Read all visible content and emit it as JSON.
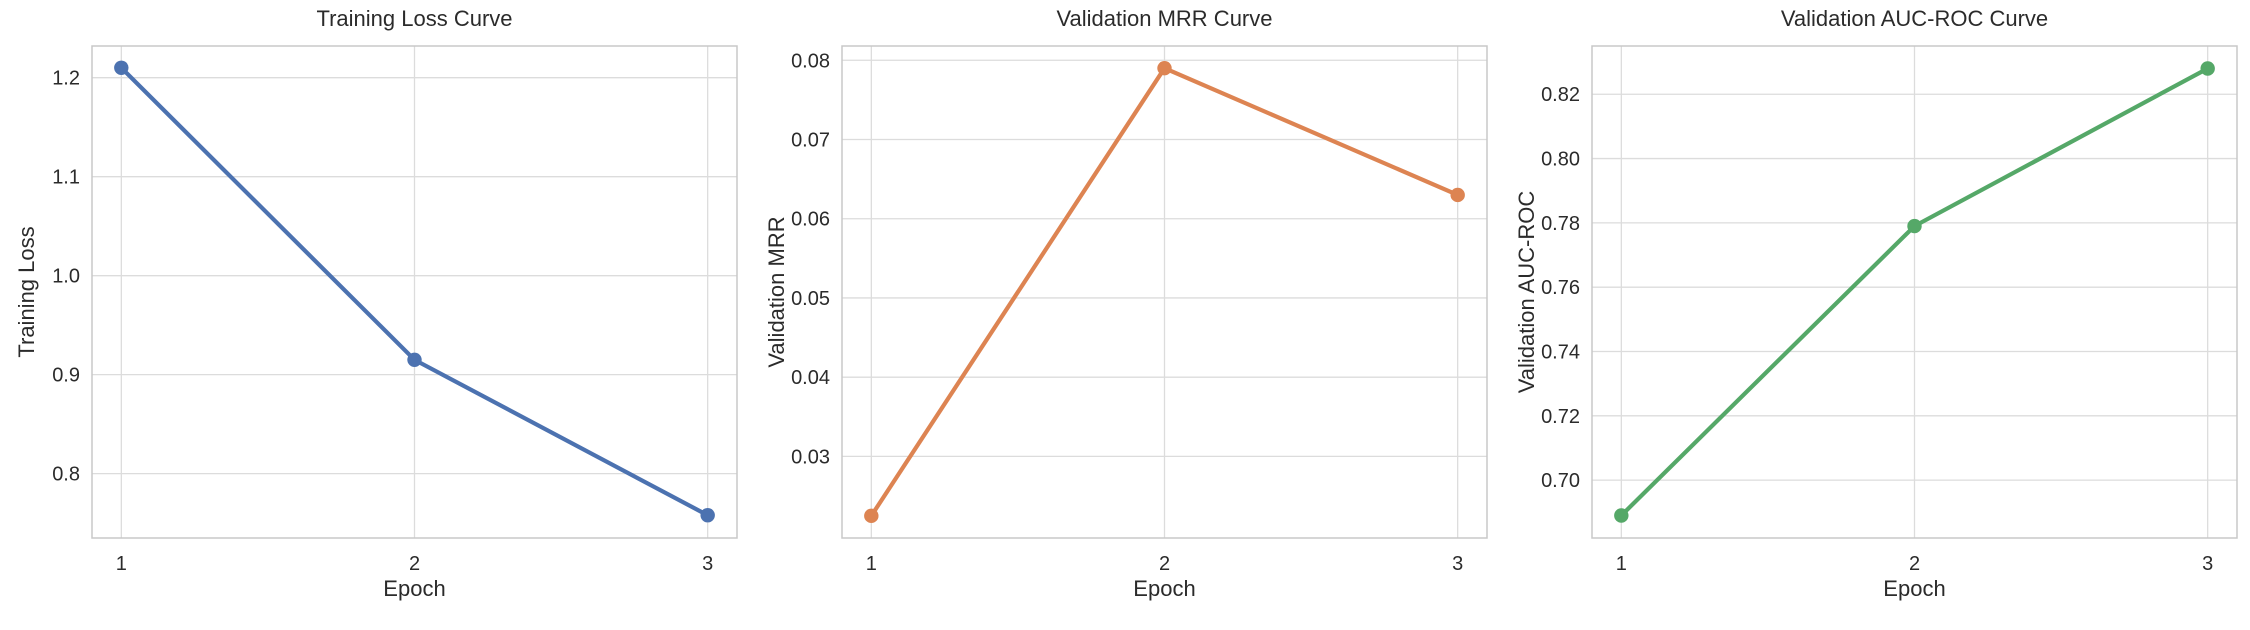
{
  "figure": {
    "background": "#ffffff",
    "grid_color": "#dcdcdc",
    "spine_color": "#c8c8c8",
    "text_color": "#2b2b2b"
  },
  "chart_data": [
    {
      "type": "line",
      "title": "Training Loss Curve",
      "xlabel": "Epoch",
      "ylabel": "Training Loss",
      "x": [
        1,
        2,
        3
      ],
      "values": [
        1.21,
        0.915,
        0.758
      ],
      "color": "#4c72b0",
      "marker": "o",
      "grid": true,
      "legend": "none",
      "xlim": [
        0.9,
        3.1
      ],
      "ylim": [
        0.735,
        1.232
      ],
      "xticks": [
        1,
        2,
        3
      ],
      "xtick_labels": [
        "1",
        "2",
        "3"
      ],
      "yticks": [
        0.8,
        0.9,
        1.0,
        1.1,
        1.2
      ],
      "ytick_labels": [
        "0.8",
        "0.9",
        "1.0",
        "1.1",
        "1.2"
      ]
    },
    {
      "type": "line",
      "title": "Validation MRR Curve",
      "xlabel": "Epoch",
      "ylabel": "Validation MRR",
      "x": [
        1,
        2,
        3
      ],
      "values": [
        0.0225,
        0.079,
        0.063
      ],
      "color": "#dd8452",
      "marker": "o",
      "grid": true,
      "legend": "none",
      "xlim": [
        0.9,
        3.1
      ],
      "ylim": [
        0.0197,
        0.0818
      ],
      "xticks": [
        1,
        2,
        3
      ],
      "xtick_labels": [
        "1",
        "2",
        "3"
      ],
      "yticks": [
        0.03,
        0.04,
        0.05,
        0.06,
        0.07,
        0.08
      ],
      "ytick_labels": [
        "0.03",
        "0.04",
        "0.05",
        "0.06",
        "0.07",
        "0.08"
      ]
    },
    {
      "type": "line",
      "title": "Validation AUC-ROC Curve",
      "xlabel": "Epoch",
      "ylabel": "Validation AUC-ROC",
      "x": [
        1,
        2,
        3
      ],
      "values": [
        0.689,
        0.779,
        0.828
      ],
      "color": "#55a868",
      "marker": "o",
      "grid": true,
      "legend": "none",
      "xlim": [
        0.9,
        3.1
      ],
      "ylim": [
        0.682,
        0.835
      ],
      "xticks": [
        1,
        2,
        3
      ],
      "xtick_labels": [
        "1",
        "2",
        "3"
      ],
      "yticks": [
        0.7,
        0.72,
        0.74,
        0.76,
        0.78,
        0.8,
        0.82
      ],
      "ytick_labels": [
        "0.70",
        "0.72",
        "0.74",
        "0.76",
        "0.78",
        "0.80",
        "0.82"
      ]
    }
  ]
}
